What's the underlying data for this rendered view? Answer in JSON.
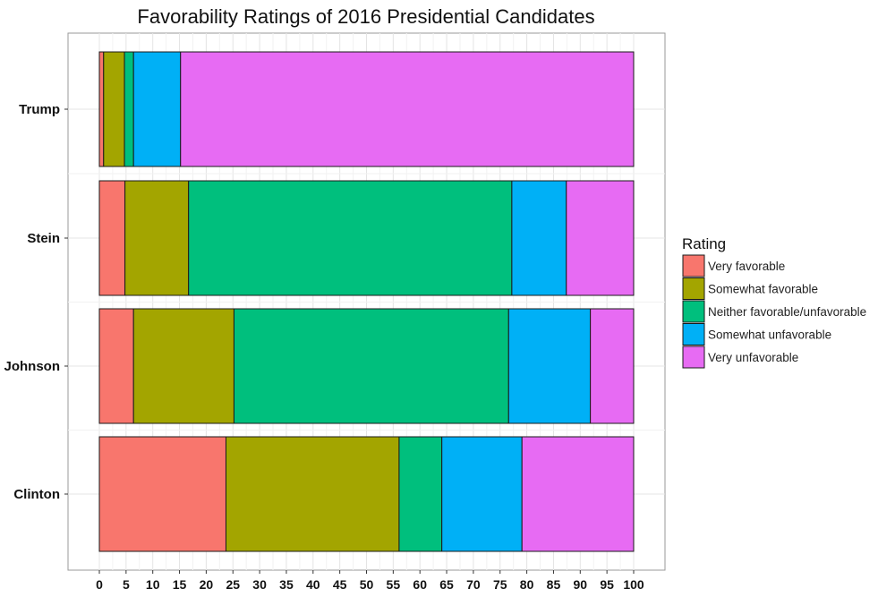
{
  "chart_data": {
    "type": "bar",
    "orientation": "horizontal",
    "stacked": true,
    "title": "Favorability Ratings of 2016 Presidential Candidates",
    "xlabel": "",
    "ylabel": "",
    "xlim": [
      0,
      100
    ],
    "xticks": [
      0,
      5,
      10,
      15,
      20,
      25,
      30,
      35,
      40,
      45,
      50,
      55,
      60,
      65,
      70,
      75,
      80,
      85,
      90,
      95,
      100
    ],
    "grid": true,
    "categories": [
      "Trump",
      "Stein",
      "Johnson",
      "Clinton"
    ],
    "series": [
      {
        "name": "Very favorable",
        "color": "#F8766D",
        "values": [
          0.8,
          4.8,
          6.4,
          23.7
        ]
      },
      {
        "name": "Somewhat favorable",
        "color": "#A3A500",
        "values": [
          3.9,
          11.9,
          18.8,
          32.4
        ]
      },
      {
        "name": "Neither favorable/unfavorable",
        "color": "#00BF7D",
        "values": [
          1.7,
          60.5,
          51.4,
          8.0
        ]
      },
      {
        "name": "Somewhat unfavorable",
        "color": "#00B0F6",
        "values": [
          8.8,
          10.2,
          15.3,
          15.0
        ]
      },
      {
        "name": "Very unfavorable",
        "color": "#E76BF3",
        "values": [
          84.8,
          12.6,
          8.1,
          20.9
        ]
      }
    ],
    "legend": {
      "title": "Rating",
      "position": "right"
    }
  }
}
